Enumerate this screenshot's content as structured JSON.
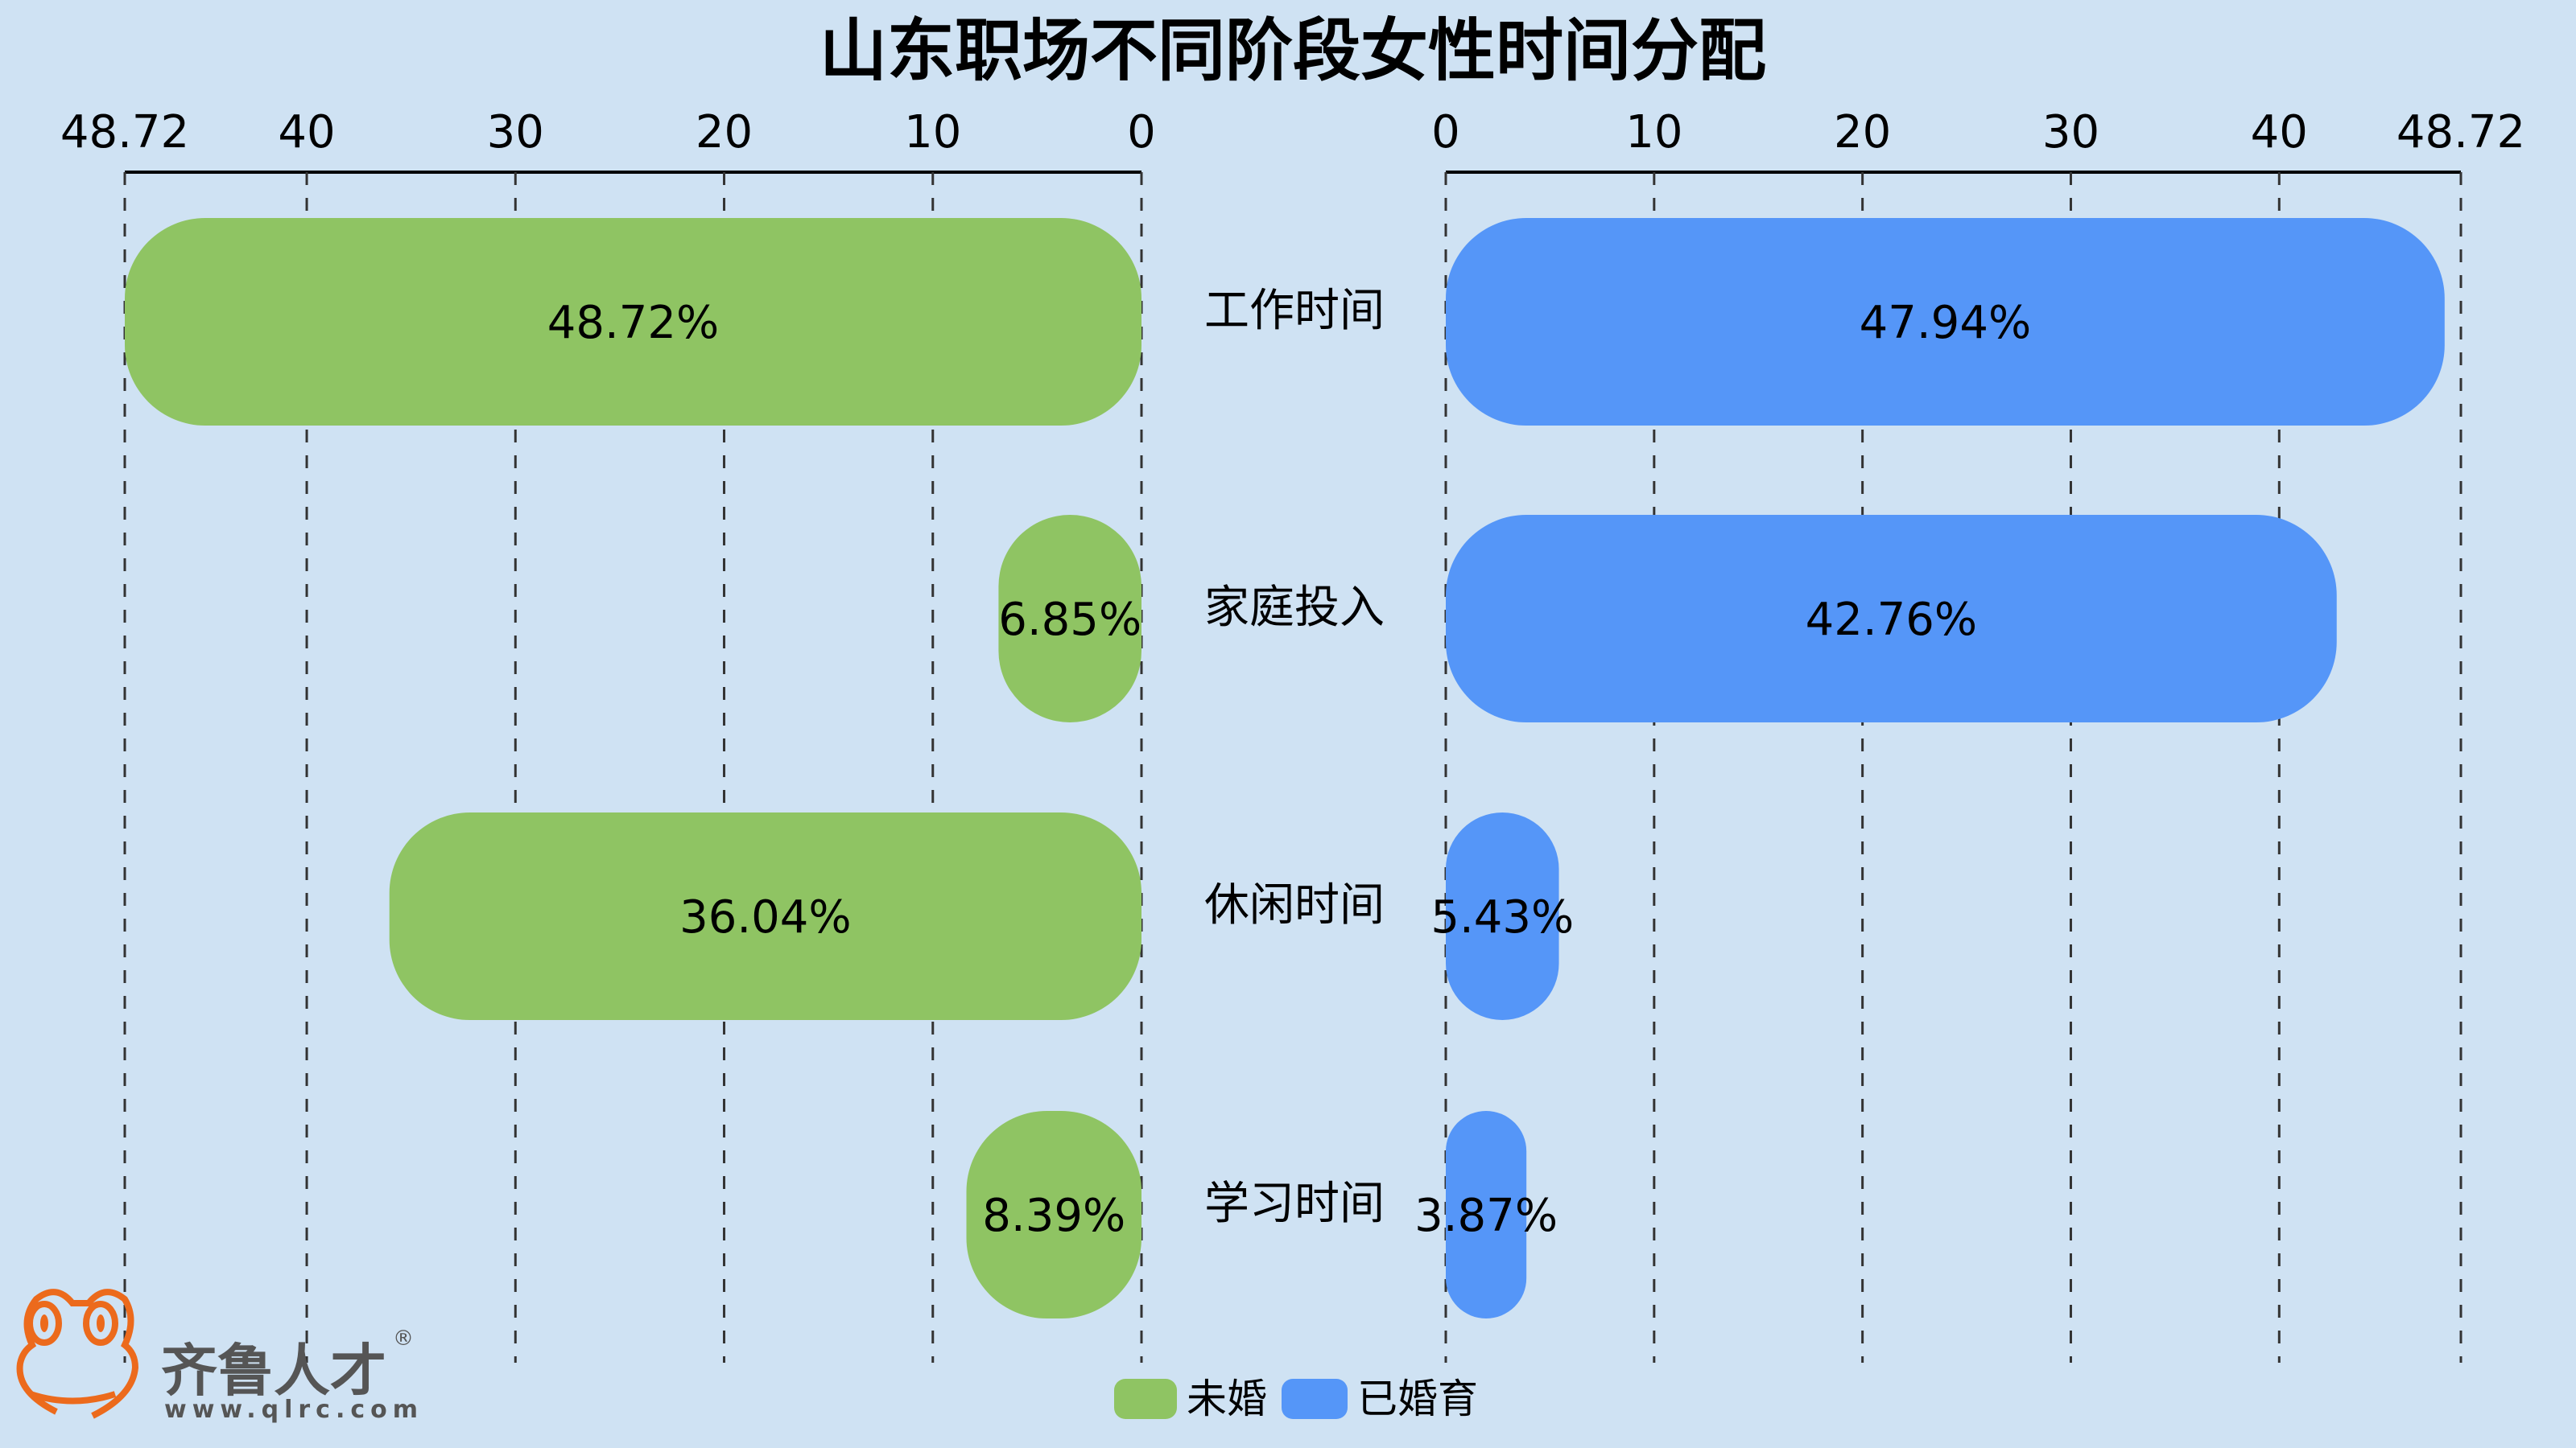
{
  "chart_data": {
    "type": "bar",
    "orientation": "horizontal-butterfly",
    "title": "山东职场不同阶段女性时间分配",
    "categories": [
      "工作时间",
      "家庭投入",
      "休闲时间",
      "学习时间"
    ],
    "series": [
      {
        "name": "未婚",
        "values": [
          48.72,
          6.85,
          36.04,
          8.39
        ],
        "labels": [
          "48.72%",
          "6.85%",
          "36.04%",
          "8.39%"
        ],
        "color": "#8fc463",
        "side": "left"
      },
      {
        "name": "已婚育",
        "values": [
          47.94,
          42.76,
          5.43,
          3.87
        ],
        "labels": [
          "47.94%",
          "42.76%",
          "5.43%",
          "3.87%"
        ],
        "color": "#5596f8",
        "side": "right"
      }
    ],
    "xlim": [
      0,
      48.72
    ],
    "ticks": [
      0,
      10,
      20,
      30,
      40,
      48.72
    ],
    "tick_labels": [
      "0",
      "10",
      "20",
      "30",
      "40",
      "48.72"
    ],
    "grid": true,
    "legend_position": "bottom-center"
  },
  "logo": {
    "name": "齐鲁人才",
    "url": "www.qlrc.com",
    "mark": "®"
  },
  "colors": {
    "background": "#cfe2f3",
    "logo": "#ec6a1c",
    "logo_text": "#555555"
  }
}
